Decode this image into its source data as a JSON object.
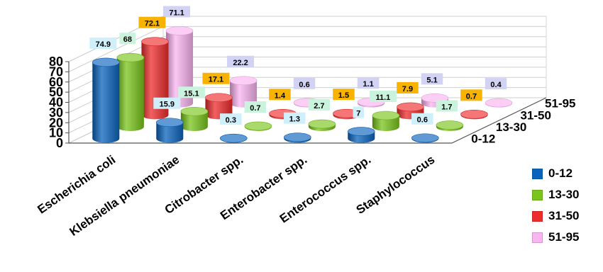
{
  "chart_data": {
    "type": "bar",
    "subtype": "3d-cylinder",
    "title": "",
    "xlabel": "",
    "ylabel": "",
    "ylim": [
      0,
      80
    ],
    "yticks": [
      0,
      10,
      20,
      30,
      40,
      50,
      60,
      70,
      80
    ],
    "grid": true,
    "legend_position": "right",
    "categories": [
      "Escherichia coli",
      "Klebsiella pneumoniae",
      "Citrobacter spp.",
      "Enterobacter spp.",
      "Enterococcus spp.",
      "Staphylococcus"
    ],
    "series": [
      {
        "name": "0-12",
        "color": "#0A64BE",
        "label_bg": "#CFEFFB",
        "values": [
          74.9,
          15.9,
          0.3,
          1.3,
          7,
          0.6
        ]
      },
      {
        "name": "13-30",
        "color": "#7AC51C",
        "label_bg": "#C9F3DC",
        "values": [
          68,
          15.1,
          0.7,
          2.7,
          11.1,
          1.7
        ]
      },
      {
        "name": "31-50",
        "color": "#EE2C2C",
        "label_bg": "#F8B200",
        "values": [
          72.1,
          17.1,
          1.4,
          1.5,
          7.9,
          0.7
        ]
      },
      {
        "name": "51-95",
        "color": "#FAB4F0",
        "label_bg": "#D2D2F4",
        "values": [
          71.1,
          22.2,
          0.6,
          1.1,
          5.1,
          0.4
        ]
      }
    ],
    "value_labels": [
      [
        "74.9",
        "15.9",
        "0.3",
        "1.3",
        "7",
        "0.6"
      ],
      [
        "68",
        "15.1",
        "0.7",
        "2.7",
        "11.1",
        "1.7"
      ],
      [
        "72.1",
        "17.1",
        "1.4",
        "1.5",
        "7.9",
        "0.7"
      ],
      [
        "71.1",
        "22.2",
        "0.6",
        "1.1",
        "5.1",
        "0.4"
      ]
    ],
    "ytick_labels": [
      "0",
      "10",
      "20",
      "30",
      "40",
      "50",
      "60",
      "70",
      "80"
    ],
    "depth_labels": [
      "0-12",
      "13-30",
      "31-50",
      "51-95"
    ]
  },
  "legend": {
    "items": [
      {
        "label": "0-12",
        "color": "#0A64BE"
      },
      {
        "label": "13-30",
        "color": "#7AC51C"
      },
      {
        "label": "31-50",
        "color": "#EE2C2C"
      },
      {
        "label": "51-95",
        "color": "#FAB4F0"
      }
    ]
  }
}
